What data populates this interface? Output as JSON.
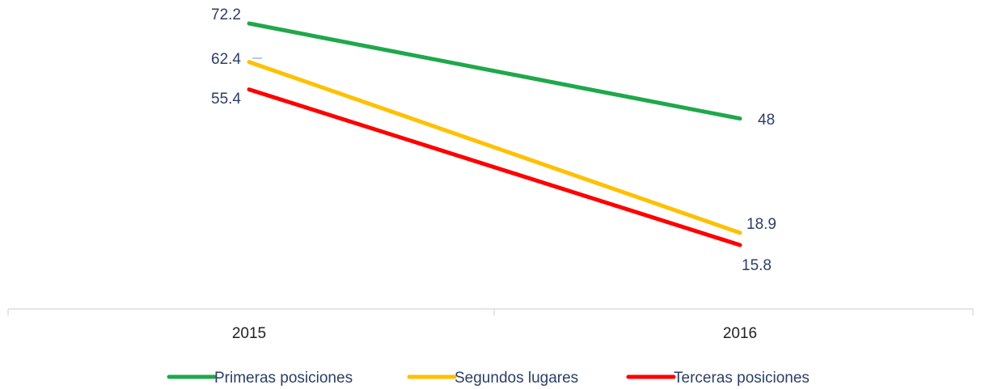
{
  "chart_data": {
    "type": "line",
    "title": "",
    "xlabel": "",
    "ylabel": "",
    "categories": [
      "2015",
      "2016"
    ],
    "ylim": [
      0,
      80
    ],
    "grid": false,
    "legend_position": "bottom",
    "series": [
      {
        "name": "Primeras posiciones",
        "color": "#1fa84b",
        "values": [
          72.2,
          48
        ]
      },
      {
        "name": "Segundos lugares",
        "color": "#ffc000",
        "values": [
          62.4,
          18.9
        ]
      },
      {
        "name": "Terceras posiciones",
        "color": "#ff0000",
        "values": [
          55.4,
          15.8
        ]
      }
    ],
    "data_labels": [
      {
        "series": 0,
        "point": 0,
        "text": "72.2"
      },
      {
        "series": 0,
        "point": 1,
        "text": "48"
      },
      {
        "series": 1,
        "point": 0,
        "text": "62.4"
      },
      {
        "series": 1,
        "point": 1,
        "text": "18.9"
      },
      {
        "series": 2,
        "point": 0,
        "text": "55.4"
      },
      {
        "series": 2,
        "point": 1,
        "text": "15.8"
      }
    ]
  }
}
